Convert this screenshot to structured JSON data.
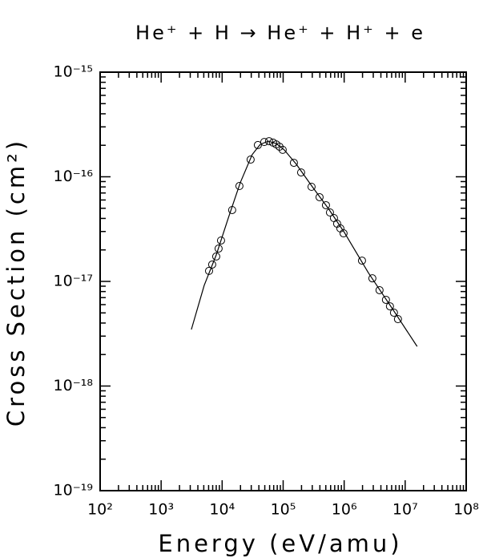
{
  "chart_data": {
    "type": "scatter",
    "title": "He⁺ + H → He⁺ + H⁺ + e",
    "xlabel": "Energy (eV/amu)",
    "ylabel": "Cross Section (cm²)",
    "xscale": "log",
    "yscale": "log",
    "xlim": [
      100,
      100000000
    ],
    "ylim": [
      1e-19,
      1e-15
    ],
    "xticks": [
      {
        "value": 100,
        "label": "10²"
      },
      {
        "value": 1000,
        "label": "10³"
      },
      {
        "value": 10000,
        "label": "10⁴"
      },
      {
        "value": 100000,
        "label": "10⁵"
      },
      {
        "value": 1000000,
        "label": "10⁶"
      },
      {
        "value": 10000000,
        "label": "10⁷"
      },
      {
        "value": 100000000,
        "label": "10⁸"
      }
    ],
    "yticks": [
      {
        "value": 1e-19,
        "label": "10⁻¹⁹"
      },
      {
        "value": 1e-18,
        "label": "10⁻¹⁸"
      },
      {
        "value": 1e-17,
        "label": "10⁻¹⁷"
      },
      {
        "value": 1e-16,
        "label": "10⁻¹⁶"
      },
      {
        "value": 1e-15,
        "label": "10⁻¹⁵"
      }
    ],
    "color": "#000000",
    "series": [
      {
        "type": "line",
        "x": [
          3130,
          5080,
          8000,
          12600,
          19800,
          31100,
          42100,
          57000,
          77100,
          104000,
          164000,
          301000,
          550000,
          1010000,
          2490000,
          6170000,
          15700000
        ],
        "values": [
          3.47e-18,
          9.17e-18,
          1.79e-17,
          4.03e-17,
          8.77e-17,
          1.63e-16,
          2.04e-16,
          2.19e-16,
          2.08e-16,
          1.81e-16,
          1.32e-16,
          8.02e-17,
          4.98e-17,
          2.93e-17,
          1.21e-17,
          5.48e-18,
          2.39e-18
        ]
      },
      {
        "type": "scatter",
        "x": [
          6100,
          6870,
          8000,
          8750,
          9590,
          14600,
          19200,
          29300,
          38500,
          49000,
          58700,
          68400,
          77100,
          87000,
          98200,
          150000,
          197000,
          292000,
          395000,
          503000,
          585000,
          680000,
          767000,
          866000,
          977000,
          1960000,
          2900000,
          3800000,
          4840000,
          5630000,
          6550000,
          7620000
        ],
        "values": [
          1.26e-17,
          1.45e-17,
          1.73e-17,
          2.06e-17,
          2.46e-17,
          4.81e-17,
          8.16e-17,
          1.46e-16,
          2.01e-16,
          2.15e-16,
          2.19e-16,
          2.12e-16,
          2.04e-16,
          1.94e-16,
          1.81e-16,
          1.36e-16,
          1.1e-16,
          8.02e-17,
          6.38e-17,
          5.35e-17,
          4.56e-17,
          4.03e-17,
          3.56e-17,
          3.21e-17,
          2.88e-17,
          1.58e-17,
          1.07e-17,
          8.24e-18,
          6.67e-18,
          5.78e-18,
          5.02e-18,
          4.36e-18
        ]
      }
    ]
  }
}
